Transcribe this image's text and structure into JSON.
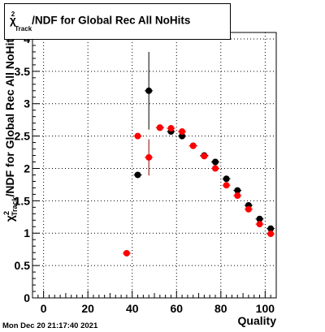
{
  "title": {
    "prefix": "χ",
    "sup": "2",
    "sub": "Track",
    "rest": "/NDF for Global Rec All NoHits"
  },
  "timestamp": "Mon Dec 20 21:17:40 2021",
  "colors": {
    "black_series": "#000000",
    "red_series": "#ff0000",
    "error_bar_red": "#8b0000",
    "frame": "#000000",
    "grid": "#000000"
  },
  "chart_data": {
    "type": "scatter",
    "title": "χ²Track/NDF for Global Rec All NoHits",
    "xlabel": "Quality",
    "ylabel": "χ²Track/NDF",
    "xlim": [
      -5,
      105
    ],
    "ylim": [
      0,
      4.1
    ],
    "grid": true,
    "x_ticks": [
      0,
      20,
      40,
      60,
      80,
      100
    ],
    "y_ticks": [
      0,
      0.5,
      1,
      1.5,
      2,
      2.5,
      3,
      3.5,
      4
    ],
    "x_tick_labels": [
      "0",
      "20",
      "40",
      "60",
      "80",
      "100"
    ],
    "y_tick_labels": [
      "0",
      "0.5",
      "1",
      "1.5",
      "2",
      "2.5",
      "3",
      "3.5",
      "4"
    ],
    "series": [
      {
        "color": "#000000",
        "points": [
          {
            "x": 42.5,
            "y": 1.9,
            "err": 0.0
          },
          {
            "x": 47.5,
            "y": 3.2,
            "err": 0.6
          },
          {
            "x": 52.5,
            "y": 2.63,
            "err": 0.04
          },
          {
            "x": 57.5,
            "y": 2.57,
            "err": 0.03
          },
          {
            "x": 62.5,
            "y": 2.5,
            "err": 0.02
          },
          {
            "x": 67.5,
            "y": 2.35,
            "err": 0.02
          },
          {
            "x": 72.5,
            "y": 2.2,
            "err": 0.02
          },
          {
            "x": 77.5,
            "y": 2.1,
            "err": 0.02
          },
          {
            "x": 82.5,
            "y": 1.84,
            "err": 0.02
          },
          {
            "x": 87.5,
            "y": 1.66,
            "err": 0.02
          },
          {
            "x": 92.5,
            "y": 1.43,
            "err": 0.02
          },
          {
            "x": 97.5,
            "y": 1.22,
            "err": 0.02
          },
          {
            "x": 102.5,
            "y": 1.07,
            "err": 0.02
          }
        ]
      },
      {
        "color": "#ff0000",
        "points": [
          {
            "x": 37.5,
            "y": 0.69,
            "err": 0.0
          },
          {
            "x": 42.5,
            "y": 2.5,
            "err": 0.0
          },
          {
            "x": 47.5,
            "y": 2.17,
            "err": 0.28
          },
          {
            "x": 52.5,
            "y": 2.63,
            "err": 0.04
          },
          {
            "x": 57.5,
            "y": 2.62,
            "err": 0.03
          },
          {
            "x": 62.5,
            "y": 2.57,
            "err": 0.02
          },
          {
            "x": 67.5,
            "y": 2.35,
            "err": 0.02
          },
          {
            "x": 72.5,
            "y": 2.19,
            "err": 0.02
          },
          {
            "x": 77.5,
            "y": 2.0,
            "err": 0.02
          },
          {
            "x": 82.5,
            "y": 1.74,
            "err": 0.02
          },
          {
            "x": 87.5,
            "y": 1.58,
            "err": 0.02
          },
          {
            "x": 92.5,
            "y": 1.37,
            "err": 0.02
          },
          {
            "x": 97.5,
            "y": 1.14,
            "err": 0.02
          },
          {
            "x": 102.5,
            "y": 0.99,
            "err": 0.02
          }
        ]
      }
    ]
  }
}
